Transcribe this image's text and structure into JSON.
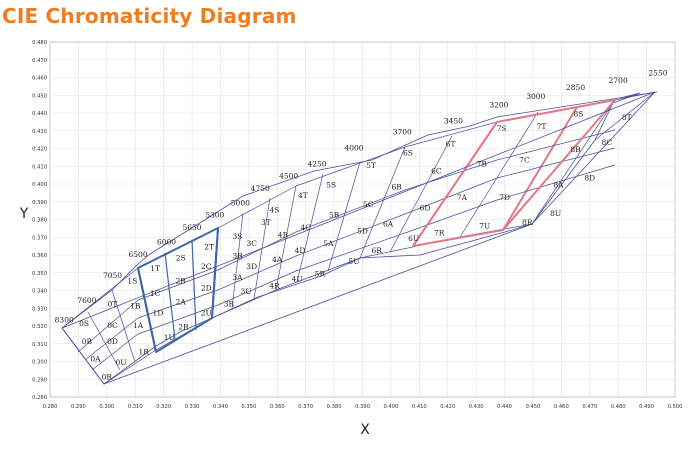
{
  "title": "CIE Chromaticity Diagram",
  "chart_data": {
    "type": "scatter",
    "xlabel": "X",
    "ylabel": "Y",
    "xlim": [
      0.28,
      0.5
    ],
    "ylim": [
      0.28,
      0.48
    ],
    "grid": true,
    "x_ticks": [
      "0.280",
      "0.290",
      "0.300",
      "0.310",
      "0.320",
      "0.330",
      "0.340",
      "0.350",
      "0.360",
      "0.370",
      "0.380",
      "0.390",
      "0.400",
      "0.410",
      "0.420",
      "0.430",
      "0.440",
      "0.450",
      "0.460",
      "0.470",
      "0.480",
      "0.490",
      "0.500"
    ],
    "y_ticks": [
      "0.480",
      "0.470",
      "0.460",
      "0.450",
      "0.440",
      "0.430",
      "0.420",
      "0.410",
      "0.400",
      "0.390",
      "0.380",
      "0.370",
      "0.360",
      "0.350",
      "0.340",
      "0.330",
      "0.320",
      "0.310",
      "0.300",
      "0.290",
      "0.280"
    ],
    "cct_labels": [
      {
        "text": "8300",
        "x": 0.285,
        "y": 0.322
      },
      {
        "text": "7600",
        "x": 0.293,
        "y": 0.333
      },
      {
        "text": "7050",
        "x": 0.302,
        "y": 0.347
      },
      {
        "text": "6500",
        "x": 0.311,
        "y": 0.359
      },
      {
        "text": "6000",
        "x": 0.321,
        "y": 0.366
      },
      {
        "text": "5650",
        "x": 0.33,
        "y": 0.374
      },
      {
        "text": "5300",
        "x": 0.338,
        "y": 0.381
      },
      {
        "text": "5000",
        "x": 0.347,
        "y": 0.388
      },
      {
        "text": "4750",
        "x": 0.354,
        "y": 0.396
      },
      {
        "text": "4500",
        "x": 0.364,
        "y": 0.403
      },
      {
        "text": "4250",
        "x": 0.374,
        "y": 0.41
      },
      {
        "text": "4000",
        "x": 0.387,
        "y": 0.419
      },
      {
        "text": "3700",
        "x": 0.404,
        "y": 0.428
      },
      {
        "text": "3450",
        "x": 0.422,
        "y": 0.434
      },
      {
        "text": "3200",
        "x": 0.438,
        "y": 0.443
      },
      {
        "text": "3000",
        "x": 0.451,
        "y": 0.448
      },
      {
        "text": "2850",
        "x": 0.465,
        "y": 0.453
      },
      {
        "text": "2700",
        "x": 0.48,
        "y": 0.457
      },
      {
        "text": "2550",
        "x": 0.494,
        "y": 0.461
      }
    ],
    "cells": [
      {
        "text": "0S",
        "x": 0.292,
        "y": 0.32
      },
      {
        "text": "0T",
        "x": 0.302,
        "y": 0.331
      },
      {
        "text": "0C",
        "x": 0.302,
        "y": 0.319
      },
      {
        "text": "0B",
        "x": 0.293,
        "y": 0.31
      },
      {
        "text": "0D",
        "x": 0.302,
        "y": 0.31
      },
      {
        "text": "0A",
        "x": 0.296,
        "y": 0.3
      },
      {
        "text": "0U",
        "x": 0.305,
        "y": 0.298
      },
      {
        "text": "0R",
        "x": 0.3,
        "y": 0.29
      },
      {
        "text": "1S",
        "x": 0.309,
        "y": 0.344
      },
      {
        "text": "1B",
        "x": 0.31,
        "y": 0.33
      },
      {
        "text": "1A",
        "x": 0.311,
        "y": 0.319
      },
      {
        "text": "1R",
        "x": 0.313,
        "y": 0.304
      },
      {
        "text": "1T",
        "x": 0.317,
        "y": 0.351
      },
      {
        "text": "1C",
        "x": 0.317,
        "y": 0.337
      },
      {
        "text": "1D",
        "x": 0.318,
        "y": 0.326
      },
      {
        "text": "1U",
        "x": 0.322,
        "y": 0.312
      },
      {
        "text": "2S",
        "x": 0.326,
        "y": 0.357
      },
      {
        "text": "2T",
        "x": 0.336,
        "y": 0.363
      },
      {
        "text": "2B",
        "x": 0.326,
        "y": 0.344
      },
      {
        "text": "2C",
        "x": 0.335,
        "y": 0.352
      },
      {
        "text": "2A",
        "x": 0.326,
        "y": 0.332
      },
      {
        "text": "2D",
        "x": 0.335,
        "y": 0.34
      },
      {
        "text": "2R",
        "x": 0.327,
        "y": 0.318
      },
      {
        "text": "2U",
        "x": 0.335,
        "y": 0.326
      },
      {
        "text": "3S",
        "x": 0.346,
        "y": 0.369
      },
      {
        "text": "3T",
        "x": 0.356,
        "y": 0.377
      },
      {
        "text": "3C",
        "x": 0.351,
        "y": 0.365
      },
      {
        "text": "3B",
        "x": 0.346,
        "y": 0.358
      },
      {
        "text": "3D",
        "x": 0.351,
        "y": 0.352
      },
      {
        "text": "3A",
        "x": 0.346,
        "y": 0.346
      },
      {
        "text": "3U",
        "x": 0.349,
        "y": 0.338
      },
      {
        "text": "3R",
        "x": 0.343,
        "y": 0.331
      },
      {
        "text": "4S",
        "x": 0.359,
        "y": 0.384
      },
      {
        "text": "4T",
        "x": 0.369,
        "y": 0.392
      },
      {
        "text": "4B",
        "x": 0.362,
        "y": 0.37
      },
      {
        "text": "4C",
        "x": 0.37,
        "y": 0.374
      },
      {
        "text": "4A",
        "x": 0.36,
        "y": 0.356
      },
      {
        "text": "4D",
        "x": 0.368,
        "y": 0.361
      },
      {
        "text": "4R",
        "x": 0.359,
        "y": 0.341
      },
      {
        "text": "4U",
        "x": 0.367,
        "y": 0.345
      },
      {
        "text": "5S",
        "x": 0.379,
        "y": 0.398
      },
      {
        "text": "5T",
        "x": 0.393,
        "y": 0.409
      },
      {
        "text": "5B",
        "x": 0.38,
        "y": 0.381
      },
      {
        "text": "5C",
        "x": 0.392,
        "y": 0.387
      },
      {
        "text": "5A",
        "x": 0.378,
        "y": 0.365
      },
      {
        "text": "5D",
        "x": 0.39,
        "y": 0.372
      },
      {
        "text": "5R",
        "x": 0.375,
        "y": 0.348
      },
      {
        "text": "5U",
        "x": 0.387,
        "y": 0.355
      },
      {
        "text": "6S",
        "x": 0.406,
        "y": 0.416
      },
      {
        "text": "6T",
        "x": 0.421,
        "y": 0.421
      },
      {
        "text": "6B",
        "x": 0.402,
        "y": 0.397
      },
      {
        "text": "6C",
        "x": 0.416,
        "y": 0.406
      },
      {
        "text": "6A",
        "x": 0.399,
        "y": 0.376
      },
      {
        "text": "6D",
        "x": 0.412,
        "y": 0.385
      },
      {
        "text": "6R",
        "x": 0.395,
        "y": 0.361
      },
      {
        "text": "6U",
        "x": 0.408,
        "y": 0.368
      },
      {
        "text": "7S",
        "x": 0.439,
        "y": 0.43
      },
      {
        "text": "7T",
        "x": 0.453,
        "y": 0.431
      },
      {
        "text": "7B",
        "x": 0.432,
        "y": 0.41
      },
      {
        "text": "7C",
        "x": 0.447,
        "y": 0.412
      },
      {
        "text": "7A",
        "x": 0.425,
        "y": 0.391
      },
      {
        "text": "7D",
        "x": 0.44,
        "y": 0.391
      },
      {
        "text": "7R",
        "x": 0.417,
        "y": 0.371
      },
      {
        "text": "7U",
        "x": 0.433,
        "y": 0.375
      },
      {
        "text": "8S",
        "x": 0.466,
        "y": 0.438
      },
      {
        "text": "8T",
        "x": 0.483,
        "y": 0.436
      },
      {
        "text": "8B",
        "x": 0.465,
        "y": 0.418
      },
      {
        "text": "8C",
        "x": 0.476,
        "y": 0.422
      },
      {
        "text": "8A",
        "x": 0.459,
        "y": 0.398
      },
      {
        "text": "8D",
        "x": 0.47,
        "y": 0.402
      },
      {
        "text": "8R",
        "x": 0.448,
        "y": 0.377
      },
      {
        "text": "8U",
        "x": 0.458,
        "y": 0.382
      }
    ],
    "colors": {
      "grid": "#4a4f9c",
      "highlight_blue": "#4066a8",
      "highlight_red": "#e07a8a",
      "axis": "#888888"
    }
  }
}
